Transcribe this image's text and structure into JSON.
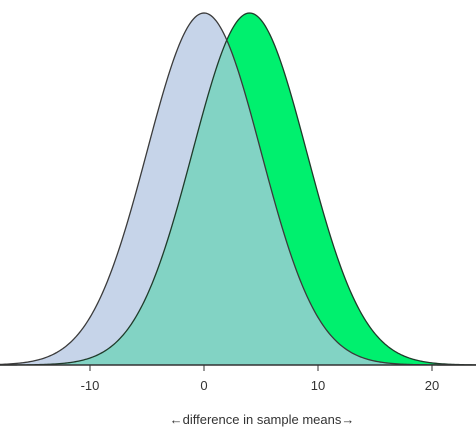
{
  "chart_data": {
    "type": "area",
    "xlabel": "←difference in sample means→",
    "xlim": [
      -18,
      24
    ],
    "ylim": [
      0,
      1
    ],
    "x_ticks": [
      -10,
      0,
      10,
      20
    ],
    "grid": false,
    "legend": "none",
    "series": [
      {
        "mean": 0,
        "sd": 5,
        "fill": "#c6d4e9",
        "stroke": "#3b3b3b"
      },
      {
        "mean": 4,
        "sd": 5,
        "fill": "#00f06e",
        "stroke": "#1f3b2a"
      }
    ],
    "overlap_fill": "#82d3c4"
  },
  "colors": {
    "axis": "#333333",
    "background": "#ffffff"
  }
}
